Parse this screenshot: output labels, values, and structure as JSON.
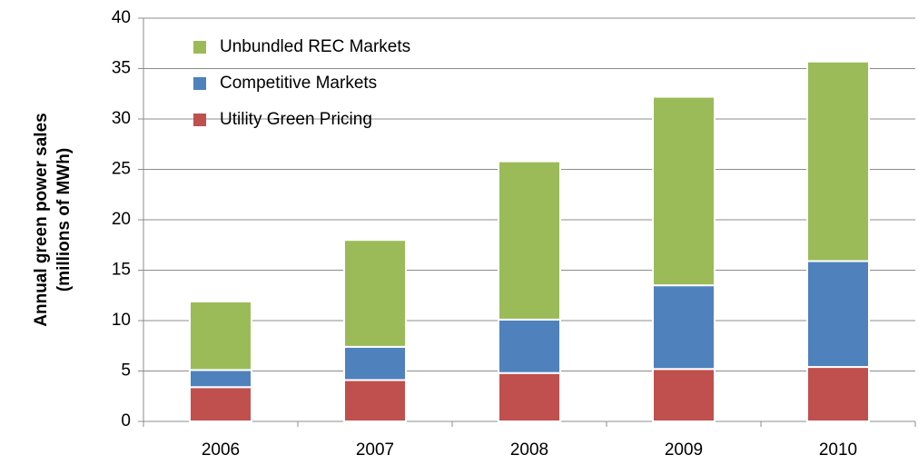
{
  "chart_data": {
    "type": "stacked_bar",
    "ylabel": [
      "Annual green power sales",
      "(millions of MWh)"
    ],
    "categories": [
      "2006",
      "2007",
      "2008",
      "2009",
      "2010"
    ],
    "series": [
      {
        "name": "Utility Green Pricing",
        "color": "#c0504d",
        "values": [
          3.4,
          4.1,
          4.8,
          5.2,
          5.4
        ]
      },
      {
        "name": "Competitive Markets",
        "color": "#4f81bd",
        "values": [
          1.7,
          3.3,
          5.3,
          8.3,
          10.5
        ]
      },
      {
        "name": "Unbundled REC Markets",
        "color": "#9bbb59",
        "values": [
          6.8,
          10.6,
          15.7,
          18.7,
          19.8
        ]
      }
    ],
    "ylim": [
      0,
      40
    ],
    "yticks": [
      0,
      5,
      10,
      15,
      20,
      25,
      30,
      35,
      40
    ],
    "grid": true,
    "legend": "upper left"
  }
}
